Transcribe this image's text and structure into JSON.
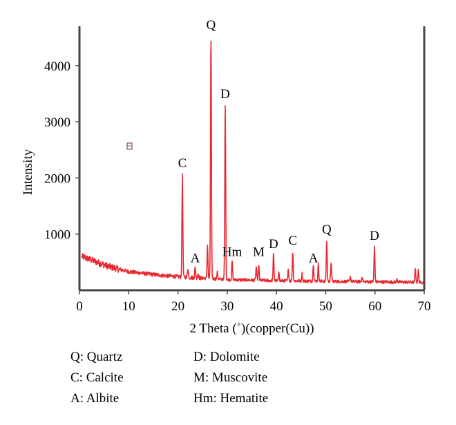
{
  "chart_data": {
    "type": "line",
    "xlabel": "2 Theta (˚)(copper(Cu))",
    "ylabel": "Intensity",
    "xlim": [
      0,
      70
    ],
    "ylim": [
      0,
      4700
    ],
    "x_ticks": [
      "0",
      "10",
      "20",
      "30",
      "40",
      "50",
      "60",
      "70"
    ],
    "y_ticks": [
      "1000",
      "2000",
      "3000",
      "4000"
    ],
    "grid": false,
    "series": [
      {
        "color": "#e8282f",
        "baseline": [
          {
            "x": 0.5,
            "y": 600
          },
          {
            "x": 3,
            "y": 520
          },
          {
            "x": 6,
            "y": 420
          },
          {
            "x": 10,
            "y": 330
          },
          {
            "x": 15,
            "y": 280
          },
          {
            "x": 20,
            "y": 240
          },
          {
            "x": 25,
            "y": 215
          },
          {
            "x": 30,
            "y": 190
          },
          {
            "x": 40,
            "y": 170
          },
          {
            "x": 50,
            "y": 160
          },
          {
            "x": 60,
            "y": 150
          },
          {
            "x": 70,
            "y": 140
          }
        ],
        "peaks": [
          {
            "x": 20.9,
            "y": 2080
          },
          {
            "x": 22.0,
            "y": 400
          },
          {
            "x": 23.5,
            "y": 410
          },
          {
            "x": 24.1,
            "y": 300
          },
          {
            "x": 26.0,
            "y": 800
          },
          {
            "x": 26.7,
            "y": 4540
          },
          {
            "x": 28.0,
            "y": 320
          },
          {
            "x": 29.6,
            "y": 3310
          },
          {
            "x": 31.0,
            "y": 520
          },
          {
            "x": 35.9,
            "y": 420
          },
          {
            "x": 36.4,
            "y": 440
          },
          {
            "x": 39.4,
            "y": 640
          },
          {
            "x": 40.5,
            "y": 320
          },
          {
            "x": 42.4,
            "y": 360
          },
          {
            "x": 43.3,
            "y": 690
          },
          {
            "x": 45.2,
            "y": 300
          },
          {
            "x": 47.5,
            "y": 470
          },
          {
            "x": 48.5,
            "y": 460
          },
          {
            "x": 50.2,
            "y": 900
          },
          {
            "x": 51.1,
            "y": 500
          },
          {
            "x": 55.0,
            "y": 250
          },
          {
            "x": 57.4,
            "y": 250
          },
          {
            "x": 59.9,
            "y": 780
          },
          {
            "x": 64.5,
            "y": 200
          },
          {
            "x": 68.2,
            "y": 380
          },
          {
            "x": 68.8,
            "y": 360
          }
        ]
      }
    ],
    "annotations": [
      {
        "text": "Q",
        "x": 26.7,
        "y": 4600
      },
      {
        "text": "D",
        "x": 29.6,
        "y": 3370
      },
      {
        "text": "C",
        "x": 20.9,
        "y": 2140
      },
      {
        "text": "A",
        "x": 23.5,
        "y": 450
      },
      {
        "text": "Hm",
        "x": 31.0,
        "y": 560
      },
      {
        "text": "M",
        "x": 36.4,
        "y": 560
      },
      {
        "text": "D",
        "x": 39.4,
        "y": 700
      },
      {
        "text": "C",
        "x": 43.3,
        "y": 760
      },
      {
        "text": "A",
        "x": 47.5,
        "y": 450
      },
      {
        "text": "Q",
        "x": 50.2,
        "y": 960
      },
      {
        "text": "D",
        "x": 59.9,
        "y": 850
      }
    ]
  },
  "legend": {
    "items": [
      "Q: Quartz",
      "D: Dolomite",
      "C: Calcite",
      "M: Muscovite",
      "A: Albite",
      "Hm: Hematite"
    ]
  }
}
